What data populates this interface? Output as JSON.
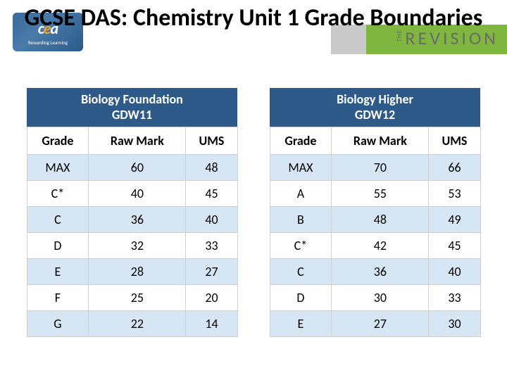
{
  "header": {
    "title": "GCSE DAS: Chemistry Unit 1 Grade Boundaries",
    "logo_main": "cea",
    "logo_tag": "Rewarding Learning",
    "rev_the": "THE",
    "rev_main": "REVISION"
  },
  "tables": {
    "left": {
      "caption_line1": "Biology Foundation",
      "caption_line2": "GDW11",
      "col1": "Grade",
      "col2": "Raw Mark",
      "col3": "UMS",
      "rows": [
        {
          "grade": "MAX",
          "raw": "60",
          "ums": "48"
        },
        {
          "grade": "C*",
          "raw": "40",
          "ums": "45"
        },
        {
          "grade": "C",
          "raw": "36",
          "ums": "40"
        },
        {
          "grade": "D",
          "raw": "32",
          "ums": "33"
        },
        {
          "grade": "E",
          "raw": "28",
          "ums": "27"
        },
        {
          "grade": "F",
          "raw": "25",
          "ums": "20"
        },
        {
          "grade": "G",
          "raw": "22",
          "ums": "14"
        }
      ]
    },
    "right": {
      "caption_line1": "Biology Higher",
      "caption_line2": "GDW12",
      "col1": "Grade",
      "col2": "Raw Mark",
      "col3": "UMS",
      "rows": [
        {
          "grade": "MAX",
          "raw": "70",
          "ums": "66"
        },
        {
          "grade": "A",
          "raw": "55",
          "ums": "53"
        },
        {
          "grade": "B",
          "raw": "48",
          "ums": "49"
        },
        {
          "grade": "C*",
          "raw": "42",
          "ums": "45"
        },
        {
          "grade": "C",
          "raw": "36",
          "ums": "40"
        },
        {
          "grade": "D",
          "raw": "30",
          "ums": "33"
        },
        {
          "grade": "E",
          "raw": "27",
          "ums": "30"
        }
      ]
    }
  },
  "styling": {
    "caption_bg": "#2e5a8a",
    "band_bg": "#d6e6f4",
    "border_color": "#d0d0d0",
    "green_accent": "#7fb63f",
    "grey_accent": "#c9c9c9"
  }
}
